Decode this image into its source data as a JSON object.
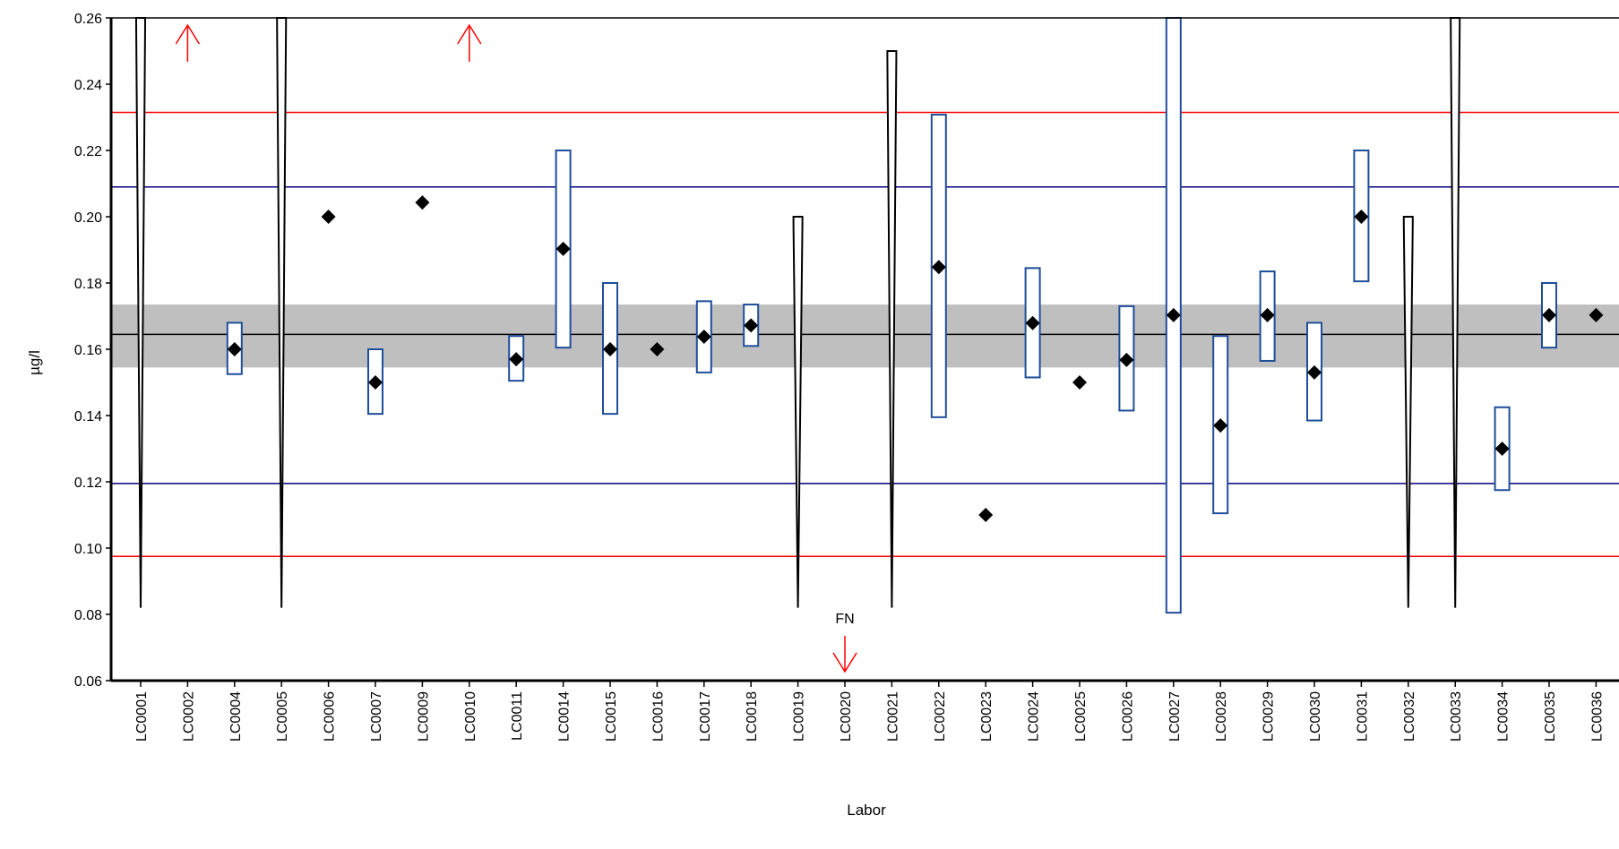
{
  "chart_data": {
    "type": "scatter",
    "xlabel": "Labor",
    "ylabel": "µg/l",
    "ylim": [
      0.06,
      0.26
    ],
    "yticks": [
      0.06,
      0.08,
      0.1,
      0.12,
      0.14,
      0.16,
      0.18,
      0.2,
      0.22,
      0.24,
      0.26
    ],
    "ytick_labels": [
      "0.06",
      "0.08",
      "0.10",
      "0.12",
      "0.14",
      "0.16",
      "0.18",
      "0.20",
      "0.22",
      "0.24",
      "0.26"
    ],
    "categories": [
      "LC0001",
      "LC0002",
      "LC0004",
      "LC0005",
      "LC0006",
      "LC0007",
      "LC0009",
      "LC0010",
      "LC0011",
      "LC0014",
      "LC0015",
      "LC0016",
      "LC0017",
      "LC0018",
      "LC0019",
      "LC0020",
      "LC0021",
      "LC0022",
      "LC0023",
      "LC0024",
      "LC0025",
      "LC0026",
      "LC0027",
      "LC0028",
      "LC0029",
      "LC0030",
      "LC0031",
      "LC0032",
      "LC0033",
      "LC0034",
      "LC0035",
      "LC0036"
    ],
    "reference": {
      "assigned_value": 0.1645,
      "uncertainty_band": [
        0.1545,
        0.1735
      ],
      "limits_inner": [
        0.1195,
        0.209
      ],
      "limits_outer": [
        0.0975,
        0.2315
      ],
      "band_color": "#bfbfbf",
      "inner_color": "#00007f",
      "outer_color": "#ff0000"
    },
    "labs": [
      {
        "lab": "LC0001",
        "kind": "spike",
        "low": 0.082,
        "high": 0.26
      },
      {
        "lab": "LC0002",
        "kind": "above"
      },
      {
        "lab": "LC0004",
        "kind": "point",
        "value": 0.16,
        "low": 0.1525,
        "high": 0.168
      },
      {
        "lab": "LC0005",
        "kind": "spike",
        "low": 0.082,
        "high": 0.26
      },
      {
        "lab": "LC0006",
        "kind": "point",
        "value": 0.2
      },
      {
        "lab": "LC0007",
        "kind": "point",
        "value": 0.15,
        "low": 0.1405,
        "high": 0.16
      },
      {
        "lab": "LC0009",
        "kind": "point",
        "value": 0.2043
      },
      {
        "lab": "LC0010",
        "kind": "above"
      },
      {
        "lab": "LC0011",
        "kind": "point",
        "value": 0.157,
        "low": 0.1505,
        "high": 0.164
      },
      {
        "lab": "LC0014",
        "kind": "point",
        "value": 0.1903,
        "low": 0.1605,
        "high": 0.22
      },
      {
        "lab": "LC0015",
        "kind": "point",
        "value": 0.16,
        "low": 0.1405,
        "high": 0.18
      },
      {
        "lab": "LC0016",
        "kind": "point",
        "value": 0.16
      },
      {
        "lab": "LC0017",
        "kind": "point",
        "value": 0.1638,
        "low": 0.153,
        "high": 0.1745
      },
      {
        "lab": "LC0018",
        "kind": "point",
        "value": 0.1672,
        "low": 0.161,
        "high": 0.1735
      },
      {
        "lab": "LC0019",
        "kind": "spike",
        "low": 0.082,
        "high": 0.2
      },
      {
        "lab": "LC0020",
        "kind": "below",
        "label": "FN"
      },
      {
        "lab": "LC0021",
        "kind": "spike",
        "low": 0.082,
        "high": 0.25
      },
      {
        "lab": "LC0022",
        "kind": "point",
        "value": 0.1848,
        "low": 0.1395,
        "high": 0.2308
      },
      {
        "lab": "LC0023",
        "kind": "point",
        "value": 0.11
      },
      {
        "lab": "LC0024",
        "kind": "point",
        "value": 0.1679,
        "low": 0.1515,
        "high": 0.1845
      },
      {
        "lab": "LC0025",
        "kind": "point",
        "value": 0.15
      },
      {
        "lab": "LC0026",
        "kind": "point",
        "value": 0.1568,
        "low": 0.1415,
        "high": 0.173
      },
      {
        "lab": "LC0027",
        "kind": "point",
        "value": 0.1703,
        "low": 0.0805,
        "high": 0.26
      },
      {
        "lab": "LC0028",
        "kind": "point",
        "value": 0.137,
        "low": 0.1105,
        "high": 0.164
      },
      {
        "lab": "LC0029",
        "kind": "point",
        "value": 0.1703,
        "low": 0.1565,
        "high": 0.1835
      },
      {
        "lab": "LC0030",
        "kind": "point",
        "value": 0.153,
        "low": 0.1385,
        "high": 0.168
      },
      {
        "lab": "LC0031",
        "kind": "point",
        "value": 0.2,
        "low": 0.1805,
        "high": 0.22
      },
      {
        "lab": "LC0032",
        "kind": "spike",
        "low": 0.082,
        "high": 0.2
      },
      {
        "lab": "LC0033",
        "kind": "spike",
        "low": 0.082,
        "high": 0.26
      },
      {
        "lab": "LC0034",
        "kind": "point",
        "value": 0.13,
        "low": 0.1175,
        "high": 0.1425
      },
      {
        "lab": "LC0035",
        "kind": "point",
        "value": 0.1703,
        "low": 0.1605,
        "high": 0.18
      },
      {
        "lab": "LC0036",
        "kind": "point",
        "value": 0.1703
      }
    ]
  }
}
